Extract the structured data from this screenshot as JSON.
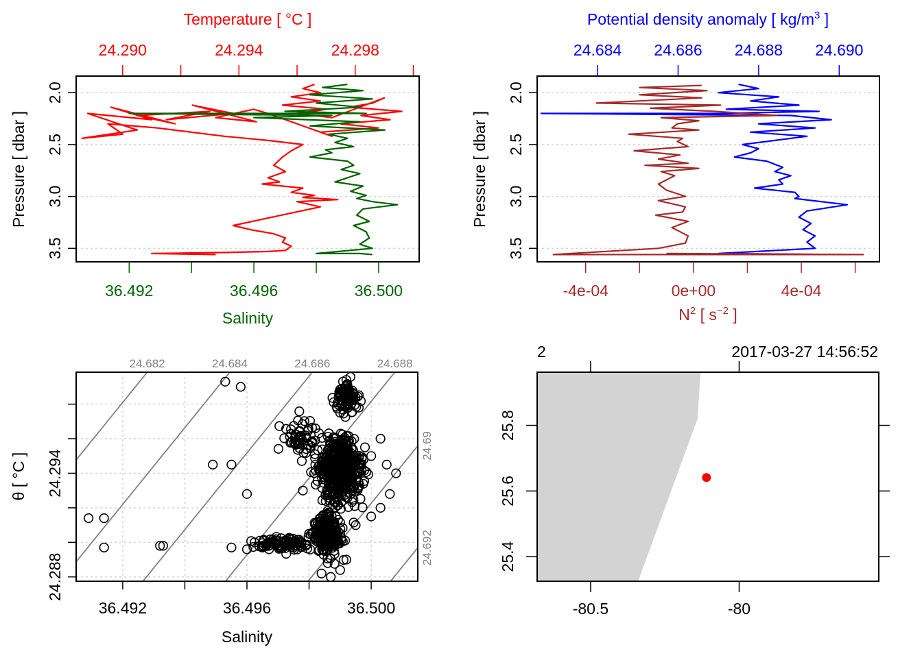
{
  "chart_data": [
    {
      "id": "profile-temperature-salinity",
      "type": "line",
      "top_axis": {
        "label": "Temperature [ °C ]",
        "color": "#ff0000",
        "ticks": [
          24.29,
          24.292,
          24.294,
          24.296,
          24.298,
          24.3
        ],
        "tick_labels": [
          "24.290",
          "",
          "24.294",
          "",
          "24.298",
          ""
        ],
        "range": [
          24.2884,
          24.3002
        ]
      },
      "bottom_axis": {
        "label": "Salinity",
        "color": "#006400",
        "ticks": [
          36.492,
          36.494,
          36.496,
          36.498,
          36.5
        ],
        "tick_labels": [
          "36.492",
          "",
          "36.496",
          "",
          "36.500"
        ],
        "range": [
          36.4903,
          36.5013
        ]
      },
      "y_axis": {
        "label": "Pressure [ dbar ]",
        "ticks": [
          2.0,
          2.5,
          3.0,
          3.5
        ],
        "tick_labels": [
          "2.0",
          "2.5",
          "3.0",
          "3.5"
        ],
        "range": [
          3.63,
          1.84
        ],
        "reversed": true
      },
      "grid": "horizontal dotted",
      "series": [
        {
          "name": "Temperature",
          "color": "#ff0000",
          "x": [
            24.2966,
            24.2962,
            24.2968,
            24.2958,
            24.2968,
            24.2955,
            24.297,
            24.296,
            24.2972,
            24.299,
            24.2986,
            24.2978,
            24.2996,
            24.2982,
            24.2992,
            24.2975,
            24.2988,
            24.2968,
            24.2972,
            24.295,
            24.2945,
            24.2932,
            24.2946,
            24.2924,
            24.2938,
            24.2915,
            24.293,
            24.2905,
            24.2918,
            24.2896,
            24.291,
            24.2888,
            24.2905,
            24.2886,
            24.29,
            24.2895,
            24.2912,
            24.2935,
            24.295,
            24.2962,
            24.2958,
            24.2955,
            24.2952,
            24.2956,
            24.295,
            24.2954,
            24.2948,
            24.2962,
            24.2958,
            24.2966,
            24.2962,
            24.2974,
            24.296,
            24.2968,
            24.2958,
            24.2948,
            24.2938,
            24.2944,
            24.2952,
            24.2956,
            24.2955,
            24.2958,
            24.2956,
            24.295,
            24.2935,
            24.291,
            24.2932
          ],
          "y": [
            1.92,
            1.96,
            2.0,
            2.04,
            2.08,
            2.12,
            2.16,
            2.2,
            2.24,
            2.05,
            2.1,
            2.14,
            2.18,
            2.22,
            2.26,
            2.3,
            2.34,
            2.38,
            2.42,
            2.2,
            2.16,
            2.24,
            2.28,
            2.12,
            2.2,
            2.26,
            2.18,
            2.22,
            2.3,
            2.14,
            2.26,
            2.2,
            2.36,
            2.44,
            2.4,
            2.3,
            2.34,
            2.42,
            2.46,
            2.5,
            2.56,
            2.62,
            2.7,
            2.76,
            2.82,
            2.86,
            2.88,
            2.92,
            2.96,
            2.99,
            3.01,
            3.03,
            3.05,
            3.1,
            3.16,
            3.22,
            3.28,
            3.32,
            3.36,
            3.4,
            3.44,
            3.48,
            3.52,
            3.53,
            3.54,
            3.55,
            3.56
          ]
        },
        {
          "name": "Salinity",
          "color": "#006400",
          "x": [
            36.499,
            36.4982,
            36.4995,
            36.4978,
            36.4998,
            36.498,
            36.4994,
            36.497,
            36.4996,
            36.492,
            36.4985,
            36.496,
            36.4994,
            36.4978,
            36.5002,
            36.4984,
            36.499,
            36.4986,
            36.4992,
            36.4983,
            36.4985,
            36.4978,
            36.499,
            36.4992,
            36.4988,
            36.4994,
            36.499,
            36.4986,
            36.4995,
            36.4991,
            36.4996,
            36.4993,
            36.4998,
            36.5006,
            36.4995,
            36.4993,
            36.4997,
            36.4992,
            36.4996,
            36.4997,
            36.4994,
            36.4998,
            36.498,
            36.4994,
            36.4998
          ],
          "y": [
            1.92,
            1.95,
            1.98,
            2.02,
            2.06,
            2.1,
            2.14,
            2.18,
            2.2,
            2.2,
            2.22,
            2.24,
            2.28,
            2.32,
            2.36,
            2.4,
            2.44,
            2.48,
            2.52,
            2.55,
            2.58,
            2.62,
            2.66,
            2.7,
            2.74,
            2.78,
            2.82,
            2.86,
            2.9,
            2.95,
            2.99,
            3.02,
            3.05,
            3.08,
            3.12,
            3.18,
            3.24,
            3.28,
            3.34,
            3.4,
            3.46,
            3.5,
            3.55,
            3.55,
            3.56
          ]
        }
      ]
    },
    {
      "id": "profile-density-n2",
      "type": "line",
      "top_axis": {
        "label": "Potential density anomaly [ kg/m^3 ]",
        "color": "#0000ff",
        "ticks": [
          24.684,
          24.686,
          24.688,
          24.69
        ],
        "tick_labels": [
          "24.684",
          "24.686",
          "24.688",
          "24.690"
        ],
        "range": [
          24.6825,
          24.691
        ]
      },
      "bottom_axis": {
        "label": "N^2 [ s^-2 ]",
        "color": "#a52a2a",
        "ticks": [
          -0.0004,
          -0.0002,
          0.0,
          0.0002,
          0.0004,
          0.0006
        ],
        "tick_labels": [
          "-4e-04",
          "",
          "0e+00",
          "",
          "4e-04",
          ""
        ],
        "range": [
          -0.00058,
          0.00069
        ]
      },
      "y_axis": {
        "label": "Pressure [ dbar ]",
        "ticks": [
          2.0,
          2.5,
          3.0,
          3.5
        ],
        "tick_labels": [
          "2.0",
          "2.5",
          "3.0",
          "3.5"
        ],
        "range": [
          3.63,
          1.84
        ],
        "reversed": true
      },
      "grid": "horizontal dotted",
      "series": [
        {
          "name": "Potential density anomaly",
          "color": "#0000ff",
          "x": [
            24.6875,
            24.688,
            24.687,
            24.6885,
            24.6878,
            24.689,
            24.6872,
            24.6895,
            24.687,
            24.6826,
            24.6888,
            24.6898,
            24.688,
            24.6894,
            24.6878,
            24.6892,
            24.6884,
            24.6876,
            24.688,
            24.6878,
            24.6874,
            24.6882,
            24.6886,
            24.6884,
            24.6888,
            24.6885,
            24.6886,
            24.6879,
            24.6889,
            24.689,
            24.6889,
            24.6902,
            24.6892,
            24.689,
            24.6893,
            24.6891,
            24.6894,
            24.6892,
            24.6894,
            24.687,
            24.69,
            24.6893
          ],
          "y": [
            1.92,
            1.96,
            2.0,
            2.04,
            2.08,
            2.12,
            2.16,
            2.18,
            2.2,
            2.2,
            2.22,
            2.26,
            2.3,
            2.34,
            2.38,
            2.42,
            2.46,
            2.5,
            2.54,
            2.58,
            2.62,
            2.66,
            2.72,
            2.76,
            2.8,
            2.84,
            2.88,
            2.92,
            2.96,
            3.0,
            3.02,
            3.08,
            3.14,
            3.2,
            3.26,
            3.32,
            3.38,
            3.44,
            3.5,
            3.55,
            3.56,
            3.56
          ]
        },
        {
          "name": "N2",
          "color": "#a52a2a",
          "x": [
            3e-05,
            -0.0002,
            5e-05,
            -0.0002,
            3e-05,
            -0.00036,
            0.0001,
            -0.00016,
            8e-05,
            0.00031,
            -0.00012,
            2e-05,
            -6e-05,
            -8e-05,
            2e-05,
            -0.00024,
            -4e-05,
            -6e-05,
            -2e-05,
            -0.00022,
            -5e-05,
            -0.00013,
            -2e-05,
            -0.00018,
            2e-05,
            -0.00012,
            -7e-05,
            -0.0001,
            -0.00013,
            -0.0001,
            -3e-05,
            -0.00013,
            -3e-05,
            -4e-05,
            -0.00014,
            -2e-05,
            -8e-05,
            -2e-05,
            -3e-05,
            -0.00013,
            -0.00052,
            0.00063,
            -0.0001
          ],
          "y": [
            1.93,
            1.95,
            1.98,
            2.02,
            2.05,
            2.1,
            2.12,
            2.15,
            2.18,
            2.22,
            2.24,
            2.27,
            2.3,
            2.34,
            2.36,
            2.4,
            2.44,
            2.47,
            2.52,
            2.56,
            2.6,
            2.64,
            2.68,
            2.7,
            2.73,
            2.76,
            2.8,
            2.84,
            2.88,
            2.94,
            3.0,
            3.04,
            3.1,
            3.15,
            3.18,
            3.24,
            3.3,
            3.38,
            3.45,
            3.5,
            3.56,
            3.56,
            3.55
          ]
        }
      ]
    },
    {
      "id": "ts-diagram",
      "type": "scatter",
      "x_axis": {
        "label": "Salinity",
        "ticks": [
          36.492,
          36.494,
          36.496,
          36.498,
          36.5
        ],
        "tick_labels": [
          "36.492",
          "",
          "36.496",
          "",
          "36.500"
        ],
        "range": [
          36.4905,
          36.5015
        ]
      },
      "y_axis": {
        "label": "θ [ °C ]",
        "ticks": [
          24.288,
          24.29,
          24.292,
          24.294,
          24.296,
          24.298
        ],
        "tick_labels": [
          "24.288",
          "",
          "",
          "24.294",
          "",
          ""
        ],
        "range": [
          24.28775,
          24.29985
        ]
      },
      "grid": "dotted",
      "isopycnals": {
        "color": "#808080",
        "levels": [
          24.682,
          24.684,
          24.686,
          24.688,
          24.69,
          24.692
        ],
        "top_labels": [
          "24.682",
          "24.684",
          "24.686",
          "24.688"
        ],
        "right_labels": [
          "24.69",
          "24.692"
        ]
      },
      "marker": "open-circle",
      "points_description": "dense cluster of ~1500 observations centered near S=36.499, θ=24.293, with a lobe extending to S≈36.4945 at θ≈24.2898 and scattered outliers",
      "points_sample": [
        [
          36.4909,
          24.2914
        ],
        [
          36.4914,
          24.2914
        ],
        [
          36.4914,
          24.2897
        ],
        [
          36.4932,
          24.2898
        ],
        [
          36.4933,
          24.2898
        ],
        [
          36.4949,
          24.2945
        ],
        [
          36.4955,
          24.2945
        ],
        [
          36.496,
          24.2928
        ],
        [
          36.4953,
          24.2993
        ],
        [
          36.4958,
          24.299
        ],
        [
          36.4955,
          24.2897
        ],
        [
          36.496,
          24.2896
        ],
        [
          36.4965,
          24.2897
        ],
        [
          36.497,
          24.2898
        ],
        [
          36.4975,
          24.2902
        ],
        [
          36.498,
          24.2905
        ],
        [
          36.4985,
          24.2906
        ],
        [
          36.4978,
          24.293
        ],
        [
          36.4982,
          24.2945
        ],
        [
          36.4988,
          24.296
        ],
        [
          36.499,
          24.2975
        ],
        [
          36.4993,
          24.2985
        ],
        [
          36.4992,
          24.2994
        ],
        [
          36.4996,
          24.2978
        ],
        [
          36.4998,
          24.2955
        ],
        [
          36.5,
          24.295
        ],
        [
          36.5003,
          24.296
        ],
        [
          36.5005,
          24.2945
        ],
        [
          36.5008,
          24.294
        ],
        [
          36.5006,
          24.2928
        ],
        [
          36.5003,
          24.292
        ],
        [
          36.5,
          24.2915
        ],
        [
          36.4995,
          24.291
        ],
        [
          36.499,
          24.2905
        ],
        [
          36.4988,
          24.2895
        ],
        [
          36.4986,
          24.2888
        ],
        [
          36.4984,
          24.2882
        ],
        [
          36.4987,
          24.288
        ],
        [
          36.499,
          24.2884
        ],
        [
          36.4992,
          24.289
        ]
      ]
    },
    {
      "id": "station-map",
      "type": "scatter",
      "title_left": "2",
      "title_right": "2017-03-27 14:56:52",
      "x_axis": {
        "label": "",
        "ticks": [
          -80.5,
          -80.0
        ],
        "tick_labels": [
          "-80.5",
          "-80"
        ],
        "range": [
          -80.68,
          -79.53
        ]
      },
      "y_axis": {
        "label": "",
        "ticks": [
          25.4,
          25.6,
          25.8
        ],
        "tick_labels": [
          "25.4",
          "25.6",
          "25.8"
        ],
        "range": [
          25.325,
          25.962
        ]
      },
      "land": {
        "color": "#d3d3d3",
        "coastline_lon_lat": [
          [
            -80.68,
            25.962
          ],
          [
            -80.13,
            25.962
          ],
          [
            -80.14,
            25.82
          ],
          [
            -80.34,
            25.325
          ],
          [
            -80.68,
            25.325
          ]
        ]
      },
      "station": {
        "lon": -80.11,
        "lat": 25.641,
        "color": "#ff0000"
      }
    }
  ]
}
